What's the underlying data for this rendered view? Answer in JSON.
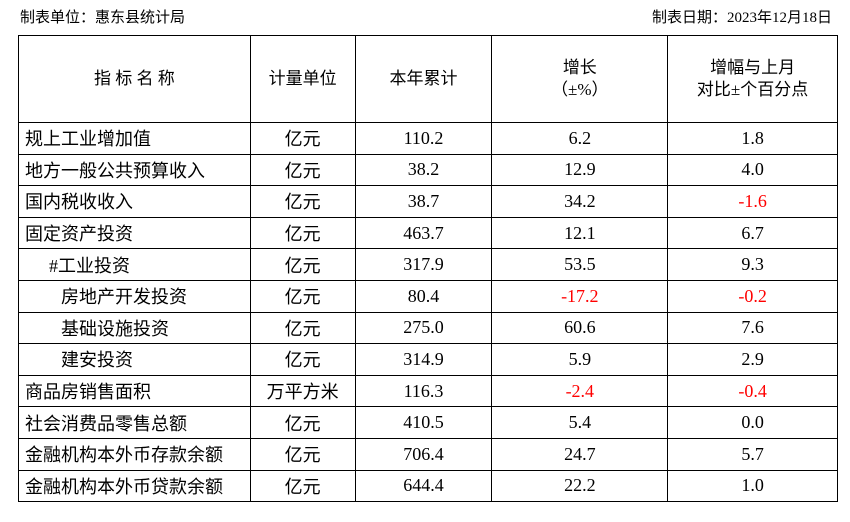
{
  "header": {
    "unit": "制表单位：惠东县统计局",
    "date": "制表日期：2023年12月18日"
  },
  "table": {
    "columns": [
      [
        "指 标 名 称"
      ],
      [
        "计量单位"
      ],
      [
        "本年累计"
      ],
      [
        "增长",
        "（±%）"
      ],
      [
        "增幅与上月",
        "对比±个百分点"
      ]
    ],
    "rows": [
      [
        "规上工业增加值",
        "亿元",
        "110.2",
        "6.2",
        "1.8"
      ],
      [
        "地方一般公共预算收入",
        "亿元",
        "38.2",
        "12.9",
        "4.0"
      ],
      [
        "国内税收收入",
        "亿元",
        "38.7",
        "34.2",
        "-1.6"
      ],
      [
        "固定资产投资",
        "亿元",
        "463.7",
        "12.1",
        "6.7"
      ],
      [
        "#工业投资",
        "亿元",
        "317.9",
        "53.5",
        "9.3"
      ],
      [
        "房地产开发投资",
        "亿元",
        "80.4",
        "-17.2",
        "-0.2"
      ],
      [
        "基础设施投资",
        "亿元",
        "275.0",
        "60.6",
        "7.6"
      ],
      [
        "建安投资",
        "亿元",
        "314.9",
        "5.9",
        "2.9"
      ],
      [
        "商品房销售面积",
        "万平方米",
        "116.3",
        "-2.4",
        "-0.4"
      ],
      [
        "社会消费品零售总额",
        "亿元",
        "410.5",
        "5.4",
        "0.0"
      ],
      [
        "金融机构本外币存款余额",
        "亿元",
        "706.4",
        "24.7",
        "5.7"
      ],
      [
        "金融机构本外币贷款余额",
        "亿元",
        "644.4",
        "22.2",
        "1.0"
      ]
    ]
  }
}
